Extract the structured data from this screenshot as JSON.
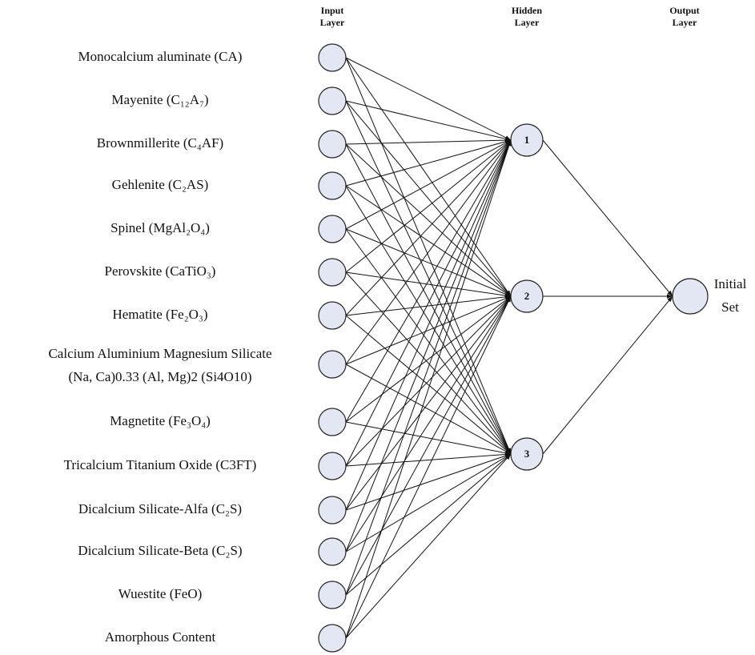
{
  "headers": {
    "input": [
      "Input",
      "Layer"
    ],
    "hidden": [
      "Hidden",
      "Layer"
    ],
    "output": [
      "Output",
      "Layer"
    ]
  },
  "input_nodes": [
    {
      "label": [
        "Monocalcium aluminate (CA)"
      ]
    },
    {
      "label": [
        "Mayenite (C₁₂A₇)"
      ]
    },
    {
      "label": [
        "Brownmillerite (C₄AF)"
      ]
    },
    {
      "label": [
        "Gehlenite (C₂AS)"
      ]
    },
    {
      "label": [
        "Spinel (MgAl₂O₄)"
      ]
    },
    {
      "label": [
        "Perovskite (CaTiO₃)"
      ]
    },
    {
      "label": [
        "Hematite (Fe₂O₃)"
      ]
    },
    {
      "label": [
        "Calcium Aluminium Magnesium Silicate",
        "(Na, Ca)0.33 (Al, Mg)2 (Si4O10)"
      ]
    },
    {
      "label": [
        "Magnetite (Fe₃O₄)"
      ]
    },
    {
      "label": [
        "Tricalcium Titanium Oxide  (C3FT)"
      ]
    },
    {
      "label": [
        "Dicalcium Silicate-Alfa (C₂S)"
      ]
    },
    {
      "label": [
        "Dicalcium Silicate-Beta (C₂S)"
      ]
    },
    {
      "label": [
        "Wuestite (FeO)"
      ]
    },
    {
      "label": [
        "Amorphous Content"
      ]
    }
  ],
  "hidden_nodes": [
    {
      "label": "1"
    },
    {
      "label": "2"
    },
    {
      "label": "3"
    }
  ],
  "output_node": {
    "label": [
      "Initial",
      "Set"
    ]
  }
}
